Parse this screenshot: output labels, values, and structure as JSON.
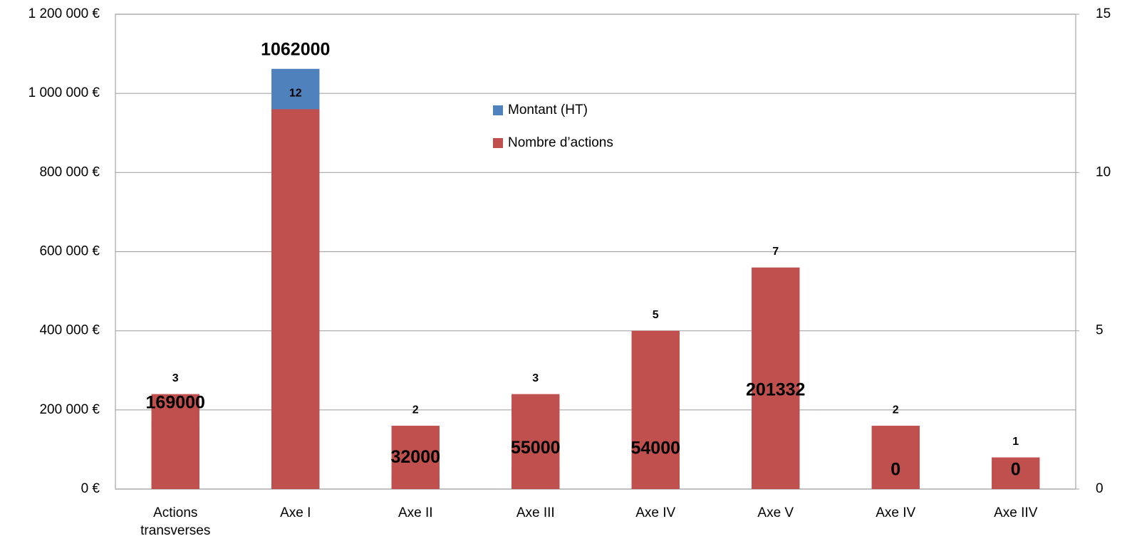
{
  "chart_data": {
    "type": "bar",
    "categories": [
      "Actions transverses",
      "Axe I",
      "Axe II",
      "Axe III",
      "Axe IV",
      "Axe V",
      "Axe IV",
      "Axe IIV"
    ],
    "series": [
      {
        "name": "Montant (HT)",
        "color": "#4f81bd",
        "values": [
          169000,
          1062000,
          32000,
          55000,
          54000,
          201332,
          0,
          0
        ]
      },
      {
        "name": "Nombre d’actions",
        "color": "#c0504d",
        "axis": "y2",
        "values": [
          3,
          12,
          2,
          3,
          5,
          7,
          2,
          1
        ]
      }
    ],
    "ylim": [
      0,
      1200000
    ],
    "yticks": [
      {
        "value": 0,
        "label": "0 €"
      },
      {
        "value": 200000,
        "label": "200 000 €"
      },
      {
        "value": 400000,
        "label": "400 000 €"
      },
      {
        "value": 600000,
        "label": "600 000 €"
      },
      {
        "value": 800000,
        "label": "800 000 €"
      },
      {
        "value": 1000000,
        "label": "1 000 000 €"
      },
      {
        "value": 1200000,
        "label": "1 200 000 €"
      }
    ],
    "y2lim": [
      0,
      15
    ],
    "y2ticks": [
      0,
      5,
      10,
      15
    ],
    "grid": true
  }
}
